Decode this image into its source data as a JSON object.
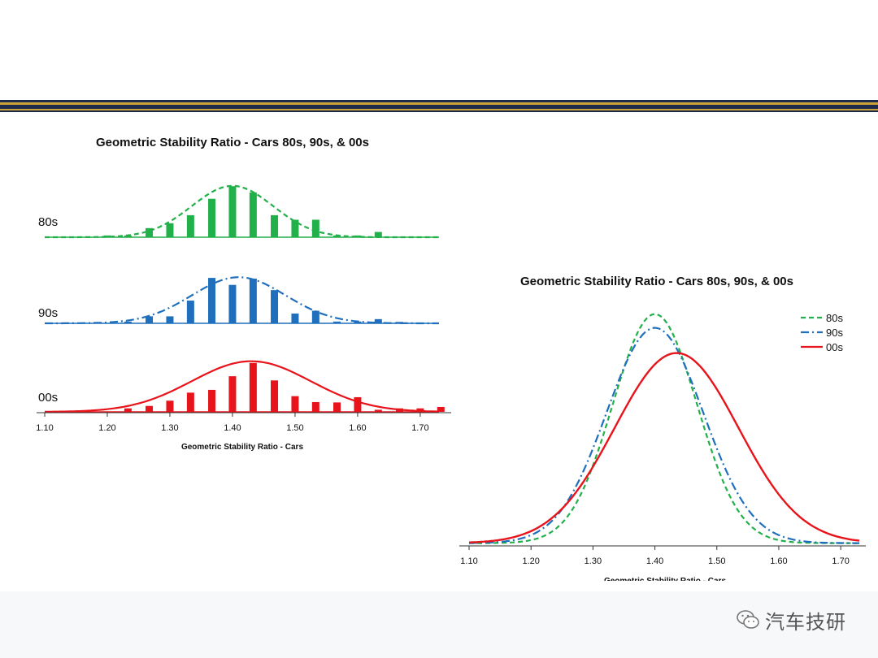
{
  "chart_data": [
    {
      "type": "bar",
      "title": "Geometric Stability Ratio - Cars 80s, 90s, & 00s",
      "xlabel": "Geometric Stability Ratio - Cars",
      "x_ticks": [
        "1.10",
        "1.20",
        "1.30",
        "1.40",
        "1.50",
        "1.60",
        "1.70"
      ],
      "xlim": [
        1.1,
        1.73
      ],
      "x": [
        1.1,
        1.133,
        1.167,
        1.2,
        1.233,
        1.267,
        1.3,
        1.333,
        1.367,
        1.4,
        1.433,
        1.467,
        1.5,
        1.533,
        1.567,
        1.6,
        1.633,
        1.667,
        1.7,
        1.733
      ],
      "series": [
        {
          "name": "80s",
          "color": "#22b04a",
          "line_style": "dashed",
          "values": [
            0,
            0,
            0,
            0.5,
            0.5,
            2.6,
            4.0,
            6.3,
            11.0,
            14.6,
            12.8,
            6.3,
            5.0,
            5.0,
            0.5,
            0.5,
            1.5,
            0,
            0,
            0
          ],
          "fit": {
            "mean": 1.4,
            "sd": 0.065,
            "peak": 14.7
          }
        },
        {
          "name": "90s",
          "color": "#1f6fbd",
          "line_style": "dashdot",
          "values": [
            0,
            0,
            0,
            0,
            0.5,
            2.0,
            2.0,
            6.5,
            13.0,
            11.0,
            12.8,
            9.5,
            2.8,
            3.6,
            0.5,
            0.5,
            1.2,
            0.4,
            0,
            0
          ],
          "fit": {
            "mean": 1.41,
            "sd": 0.075,
            "peak": 13.2
          }
        },
        {
          "name": "00s",
          "color": "#e8141b",
          "line_style": "solid",
          "values": [
            0,
            0,
            0,
            0,
            1.0,
            1.7,
            3.2,
            5.5,
            6.3,
            10.2,
            14.0,
            9.0,
            4.5,
            2.8,
            2.7,
            4.2,
            0.6,
            1.0,
            1.0,
            1.4
          ],
          "fit": {
            "mean": 1.43,
            "sd": 0.095,
            "peak": 14.5
          }
        }
      ]
    },
    {
      "type": "line",
      "title": "Geometric Stability Ratio - Cars 80s, 90s, & 00s",
      "xlabel": "Geometric Stability Ratio - Cars",
      "x_ticks": [
        "1.10",
        "1.20",
        "1.30",
        "1.40",
        "1.50",
        "1.60",
        "1.70"
      ],
      "xlim": [
        1.1,
        1.73
      ],
      "legend_position": "top-right",
      "series": [
        {
          "name": "80s",
          "color": "#22b04a",
          "line_style": "dashed",
          "mean": 1.4,
          "sd": 0.068,
          "peak": 1.0
        },
        {
          "name": "90s",
          "color": "#1f6fbd",
          "line_style": "dashdot",
          "mean": 1.4,
          "sd": 0.078,
          "peak": 0.94
        },
        {
          "name": "00s",
          "color": "#e8141b",
          "line_style": "solid",
          "mean": 1.435,
          "sd": 0.1,
          "peak": 0.83
        }
      ]
    }
  ],
  "watermark": {
    "text": "汽车技研",
    "icon": "wechat-icon"
  }
}
